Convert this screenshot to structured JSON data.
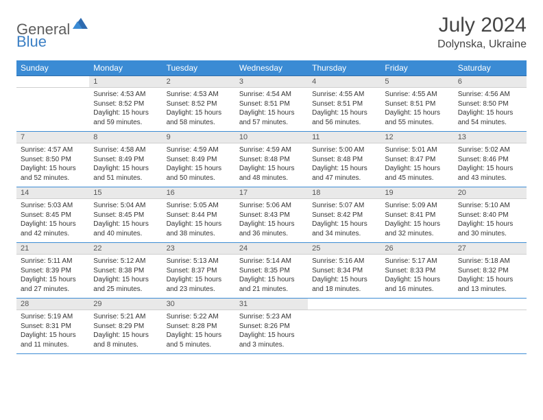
{
  "logo": {
    "part1": "General",
    "part2": "Blue"
  },
  "title": "July 2024",
  "location": "Dolynska, Ukraine",
  "colors": {
    "header_bg": "#3b8bd4",
    "header_text": "#ffffff",
    "daynum_bg": "#e9e9e9",
    "border": "#3b8bd4",
    "logo_gray": "#5e5e5e",
    "logo_blue": "#3b7fc4"
  },
  "weekdays": [
    "Sunday",
    "Monday",
    "Tuesday",
    "Wednesday",
    "Thursday",
    "Friday",
    "Saturday"
  ],
  "weeks": [
    {
      "nums": [
        "",
        "1",
        "2",
        "3",
        "4",
        "5",
        "6"
      ],
      "cells": [
        null,
        {
          "sr": "Sunrise: 4:53 AM",
          "ss": "Sunset: 8:52 PM",
          "d1": "Daylight: 15 hours",
          "d2": "and 59 minutes."
        },
        {
          "sr": "Sunrise: 4:53 AM",
          "ss": "Sunset: 8:52 PM",
          "d1": "Daylight: 15 hours",
          "d2": "and 58 minutes."
        },
        {
          "sr": "Sunrise: 4:54 AM",
          "ss": "Sunset: 8:51 PM",
          "d1": "Daylight: 15 hours",
          "d2": "and 57 minutes."
        },
        {
          "sr": "Sunrise: 4:55 AM",
          "ss": "Sunset: 8:51 PM",
          "d1": "Daylight: 15 hours",
          "d2": "and 56 minutes."
        },
        {
          "sr": "Sunrise: 4:55 AM",
          "ss": "Sunset: 8:51 PM",
          "d1": "Daylight: 15 hours",
          "d2": "and 55 minutes."
        },
        {
          "sr": "Sunrise: 4:56 AM",
          "ss": "Sunset: 8:50 PM",
          "d1": "Daylight: 15 hours",
          "d2": "and 54 minutes."
        }
      ]
    },
    {
      "nums": [
        "7",
        "8",
        "9",
        "10",
        "11",
        "12",
        "13"
      ],
      "cells": [
        {
          "sr": "Sunrise: 4:57 AM",
          "ss": "Sunset: 8:50 PM",
          "d1": "Daylight: 15 hours",
          "d2": "and 52 minutes."
        },
        {
          "sr": "Sunrise: 4:58 AM",
          "ss": "Sunset: 8:49 PM",
          "d1": "Daylight: 15 hours",
          "d2": "and 51 minutes."
        },
        {
          "sr": "Sunrise: 4:59 AM",
          "ss": "Sunset: 8:49 PM",
          "d1": "Daylight: 15 hours",
          "d2": "and 50 minutes."
        },
        {
          "sr": "Sunrise: 4:59 AM",
          "ss": "Sunset: 8:48 PM",
          "d1": "Daylight: 15 hours",
          "d2": "and 48 minutes."
        },
        {
          "sr": "Sunrise: 5:00 AM",
          "ss": "Sunset: 8:48 PM",
          "d1": "Daylight: 15 hours",
          "d2": "and 47 minutes."
        },
        {
          "sr": "Sunrise: 5:01 AM",
          "ss": "Sunset: 8:47 PM",
          "d1": "Daylight: 15 hours",
          "d2": "and 45 minutes."
        },
        {
          "sr": "Sunrise: 5:02 AM",
          "ss": "Sunset: 8:46 PM",
          "d1": "Daylight: 15 hours",
          "d2": "and 43 minutes."
        }
      ]
    },
    {
      "nums": [
        "14",
        "15",
        "16",
        "17",
        "18",
        "19",
        "20"
      ],
      "cells": [
        {
          "sr": "Sunrise: 5:03 AM",
          "ss": "Sunset: 8:45 PM",
          "d1": "Daylight: 15 hours",
          "d2": "and 42 minutes."
        },
        {
          "sr": "Sunrise: 5:04 AM",
          "ss": "Sunset: 8:45 PM",
          "d1": "Daylight: 15 hours",
          "d2": "and 40 minutes."
        },
        {
          "sr": "Sunrise: 5:05 AM",
          "ss": "Sunset: 8:44 PM",
          "d1": "Daylight: 15 hours",
          "d2": "and 38 minutes."
        },
        {
          "sr": "Sunrise: 5:06 AM",
          "ss": "Sunset: 8:43 PM",
          "d1": "Daylight: 15 hours",
          "d2": "and 36 minutes."
        },
        {
          "sr": "Sunrise: 5:07 AM",
          "ss": "Sunset: 8:42 PM",
          "d1": "Daylight: 15 hours",
          "d2": "and 34 minutes."
        },
        {
          "sr": "Sunrise: 5:09 AM",
          "ss": "Sunset: 8:41 PM",
          "d1": "Daylight: 15 hours",
          "d2": "and 32 minutes."
        },
        {
          "sr": "Sunrise: 5:10 AM",
          "ss": "Sunset: 8:40 PM",
          "d1": "Daylight: 15 hours",
          "d2": "and 30 minutes."
        }
      ]
    },
    {
      "nums": [
        "21",
        "22",
        "23",
        "24",
        "25",
        "26",
        "27"
      ],
      "cells": [
        {
          "sr": "Sunrise: 5:11 AM",
          "ss": "Sunset: 8:39 PM",
          "d1": "Daylight: 15 hours",
          "d2": "and 27 minutes."
        },
        {
          "sr": "Sunrise: 5:12 AM",
          "ss": "Sunset: 8:38 PM",
          "d1": "Daylight: 15 hours",
          "d2": "and 25 minutes."
        },
        {
          "sr": "Sunrise: 5:13 AM",
          "ss": "Sunset: 8:37 PM",
          "d1": "Daylight: 15 hours",
          "d2": "and 23 minutes."
        },
        {
          "sr": "Sunrise: 5:14 AM",
          "ss": "Sunset: 8:35 PM",
          "d1": "Daylight: 15 hours",
          "d2": "and 21 minutes."
        },
        {
          "sr": "Sunrise: 5:16 AM",
          "ss": "Sunset: 8:34 PM",
          "d1": "Daylight: 15 hours",
          "d2": "and 18 minutes."
        },
        {
          "sr": "Sunrise: 5:17 AM",
          "ss": "Sunset: 8:33 PM",
          "d1": "Daylight: 15 hours",
          "d2": "and 16 minutes."
        },
        {
          "sr": "Sunrise: 5:18 AM",
          "ss": "Sunset: 8:32 PM",
          "d1": "Daylight: 15 hours",
          "d2": "and 13 minutes."
        }
      ]
    },
    {
      "nums": [
        "28",
        "29",
        "30",
        "31",
        "",
        "",
        ""
      ],
      "cells": [
        {
          "sr": "Sunrise: 5:19 AM",
          "ss": "Sunset: 8:31 PM",
          "d1": "Daylight: 15 hours",
          "d2": "and 11 minutes."
        },
        {
          "sr": "Sunrise: 5:21 AM",
          "ss": "Sunset: 8:29 PM",
          "d1": "Daylight: 15 hours",
          "d2": "and 8 minutes."
        },
        {
          "sr": "Sunrise: 5:22 AM",
          "ss": "Sunset: 8:28 PM",
          "d1": "Daylight: 15 hours",
          "d2": "and 5 minutes."
        },
        {
          "sr": "Sunrise: 5:23 AM",
          "ss": "Sunset: 8:26 PM",
          "d1": "Daylight: 15 hours",
          "d2": "and 3 minutes."
        },
        null,
        null,
        null
      ]
    }
  ]
}
